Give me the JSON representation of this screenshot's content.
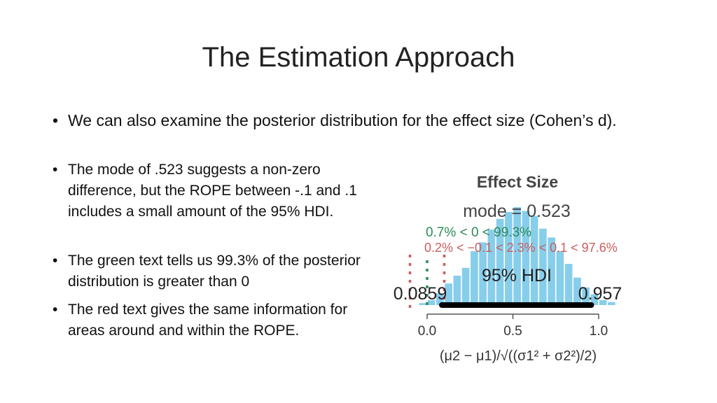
{
  "slide": {
    "title": "The Estimation Approach",
    "bullets": [
      "We can also examine the posterior distribution for the effect size (Cohen’s d).",
      "The mode of .523 suggests a non-zero difference, but the ROPE between -.1 and .1 includes a small amount of the 95% HDI.",
      "The green text tells us 99.3% of the posterior distribution is greater than 0",
      "The red text gives the same information for areas around and within the ROPE."
    ]
  },
  "colors": {
    "bars": "#87ceeb",
    "hdi_line": "#000000",
    "green": "#2e8b57",
    "red": "#cd5c5c",
    "title_text": "#222222"
  },
  "chart_data": {
    "type": "bar",
    "title": "Effect Size",
    "mode_label": "mode = 0.523",
    "green_annotation": "0.7% < 0 < 99.3%",
    "red_annotation": "0.2% < −0.1 < 2.3% < 0.1 < 97.6%",
    "hdi_label": "95% HDI",
    "hdi_low_label": "0.0859",
    "hdi_high_label": "0.957",
    "hdi": [
      0.0859,
      0.957
    ],
    "comparison_value": 0,
    "rope": [
      -0.1,
      0.1
    ],
    "xlim": [
      -0.05,
      1.15
    ],
    "xticks": [
      0.0,
      0.5,
      1.0
    ],
    "xtick_labels": [
      "0.0",
      "0.5",
      "1.0"
    ],
    "xlabel": "(μ2 − μ1)/√((σ1² + σ2²)/2)",
    "bin_width": 0.05,
    "bins": [
      {
        "x": -0.025,
        "density": 0.02
      },
      {
        "x": 0.025,
        "density": 0.05
      },
      {
        "x": 0.075,
        "density": 0.12
      },
      {
        "x": 0.125,
        "density": 0.22
      },
      {
        "x": 0.175,
        "density": 0.3
      },
      {
        "x": 0.225,
        "density": 0.38
      },
      {
        "x": 0.275,
        "density": 0.55
      },
      {
        "x": 0.325,
        "density": 0.64
      },
      {
        "x": 0.375,
        "density": 0.77
      },
      {
        "x": 0.425,
        "density": 0.88
      },
      {
        "x": 0.475,
        "density": 0.95
      },
      {
        "x": 0.525,
        "density": 1.0
      },
      {
        "x": 0.575,
        "density": 0.96
      },
      {
        "x": 0.625,
        "density": 0.91
      },
      {
        "x": 0.675,
        "density": 0.78
      },
      {
        "x": 0.725,
        "density": 0.69
      },
      {
        "x": 0.775,
        "density": 0.55
      },
      {
        "x": 0.825,
        "density": 0.42
      },
      {
        "x": 0.875,
        "density": 0.28
      },
      {
        "x": 0.925,
        "density": 0.18
      },
      {
        "x": 0.975,
        "density": 0.11
      },
      {
        "x": 1.025,
        "density": 0.05
      },
      {
        "x": 1.075,
        "density": 0.03
      }
    ]
  }
}
